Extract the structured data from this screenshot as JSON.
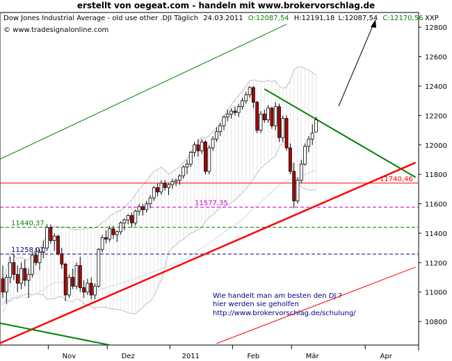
{
  "banner": "erstellt von oegeat.com  -  handeln mit  www.brokervorschlag.de",
  "header": {
    "title": "Dow Jones Industrial Average - old use other .DJI Täglich",
    "date": "24.03.2011",
    "open": "O:12087,54",
    "high": "H:12191,18",
    "low": "L:12087,54",
    "close": "C:12170,56",
    "symbol": "XXP",
    "copyright": "© www.tradesignalonline.com"
  },
  "annotation": {
    "line1": "Wie handelt man am besten  den DJ ?",
    "line2": "hier werden sie geholfen",
    "line3": "http://www.brokervorschlag.de/schulung/"
  },
  "colors": {
    "up_candle": "#ffffff",
    "down_candle": "#b00000",
    "outline": "#000000",
    "resistance": "#008000",
    "support": "#ff0000",
    "level_green": "#008000",
    "level_blue": "#000080",
    "level_magenta": "#cc00cc",
    "level_red": "#ff0000",
    "band": "#c0c0c0"
  },
  "chart_data": {
    "type": "candlestick",
    "title": "Dow Jones Industrial Average - old use other .DJI Täglich",
    "x_labels": [
      "Nov",
      "Dez",
      "2011",
      "Feb",
      "Mär",
      "Apr"
    ],
    "ylim": [
      10640,
      12900
    ],
    "y_ticks": [
      10800,
      11000,
      11200,
      11400,
      11600,
      11800,
      12000,
      12200,
      12400,
      12600,
      12800
    ],
    "grid": false,
    "last_close": 12170.56,
    "levels": [
      {
        "value": 11740.46,
        "label": "11740,46",
        "color": "#ff0000",
        "style": "solid"
      },
      {
        "value": 11577.35,
        "label": "11577,35",
        "color": "#cc00cc",
        "style": "dashed"
      },
      {
        "value": 11440.37,
        "label": "11440,37",
        "color": "#008000",
        "style": "dashed"
      },
      {
        "value": 11258.01,
        "label": "11258,01",
        "color": "#000080",
        "style": "dashed"
      }
    ],
    "ohlc": [
      [
        11090,
        11180,
        10960,
        11000
      ],
      [
        11000,
        11120,
        10920,
        11100
      ],
      [
        11100,
        11240,
        11060,
        11200
      ],
      [
        11200,
        11260,
        11080,
        11120
      ],
      [
        11120,
        11180,
        11000,
        11060
      ],
      [
        11060,
        11200,
        11020,
        11160
      ],
      [
        11160,
        11220,
        11040,
        11080
      ],
      [
        11080,
        11160,
        10960,
        11120
      ],
      [
        11120,
        11270,
        11100,
        11250
      ],
      [
        11250,
        11300,
        11180,
        11200
      ],
      [
        11200,
        11290,
        11150,
        11270
      ],
      [
        11270,
        11350,
        11230,
        11300
      ],
      [
        11300,
        11460,
        11280,
        11440
      ],
      [
        11440,
        11460,
        11330,
        11350
      ],
      [
        11350,
        11400,
        11280,
        11380
      ],
      [
        11380,
        11390,
        11250,
        11260
      ],
      [
        11260,
        11300,
        11160,
        11190
      ],
      [
        11190,
        11200,
        10940,
        10980
      ],
      [
        10980,
        11120,
        10960,
        11100
      ],
      [
        11100,
        11160,
        11020,
        11040
      ],
      [
        11040,
        11200,
        11020,
        11180
      ],
      [
        11180,
        11240,
        11000,
        11030
      ],
      [
        11030,
        11080,
        10960,
        11000
      ],
      [
        11000,
        11090,
        10980,
        11060
      ],
      [
        11060,
        11100,
        10950,
        10980
      ],
      [
        10980,
        11060,
        10950,
        11040
      ],
      [
        11040,
        11300,
        11030,
        11290
      ],
      [
        11290,
        11390,
        11270,
        11370
      ],
      [
        11370,
        11420,
        11330,
        11360
      ],
      [
        11360,
        11450,
        11340,
        11430
      ],
      [
        11430,
        11450,
        11360,
        11390
      ],
      [
        11390,
        11420,
        11340,
        11410
      ],
      [
        11410,
        11480,
        11390,
        11470
      ],
      [
        11470,
        11500,
        11420,
        11490
      ],
      [
        11490,
        11530,
        11460,
        11520
      ],
      [
        11520,
        11540,
        11440,
        11470
      ],
      [
        11470,
        11560,
        11450,
        11550
      ],
      [
        11550,
        11600,
        11520,
        11580
      ],
      [
        11580,
        11600,
        11520,
        11560
      ],
      [
        11560,
        11620,
        11540,
        11600
      ],
      [
        11600,
        11660,
        11570,
        11640
      ],
      [
        11640,
        11720,
        11620,
        11710
      ],
      [
        11710,
        11740,
        11650,
        11680
      ],
      [
        11680,
        11760,
        11660,
        11740
      ],
      [
        11740,
        11760,
        11690,
        11710
      ],
      [
        11710,
        11740,
        11660,
        11730
      ],
      [
        11730,
        11770,
        11700,
        11750
      ],
      [
        11750,
        11770,
        11720,
        11760
      ],
      [
        11760,
        11800,
        11730,
        11790
      ],
      [
        11790,
        11860,
        11770,
        11850
      ],
      [
        11850,
        11900,
        11800,
        11870
      ],
      [
        11870,
        11960,
        11850,
        11950
      ],
      [
        11950,
        12020,
        11920,
        12000
      ],
      [
        12000,
        12040,
        11920,
        11960
      ],
      [
        11960,
        12040,
        11940,
        12020
      ],
      [
        12020,
        12030,
        11800,
        11820
      ],
      [
        11820,
        12000,
        11800,
        11980
      ],
      [
        11980,
        12060,
        11960,
        12040
      ],
      [
        12040,
        12120,
        12020,
        12090
      ],
      [
        12090,
        12150,
        12060,
        12130
      ],
      [
        12130,
        12200,
        12100,
        12190
      ],
      [
        12190,
        12240,
        12160,
        12210
      ],
      [
        12210,
        12250,
        12180,
        12230
      ],
      [
        12230,
        12260,
        12200,
        12220
      ],
      [
        12220,
        12280,
        12190,
        12260
      ],
      [
        12260,
        12320,
        12240,
        12300
      ],
      [
        12300,
        12360,
        12280,
        12340
      ],
      [
        12340,
        12400,
        12320,
        12390
      ],
      [
        12390,
        12400,
        12250,
        12290
      ],
      [
        12290,
        12300,
        12080,
        12100
      ],
      [
        12100,
        12230,
        12080,
        12210
      ],
      [
        12210,
        12240,
        12150,
        12170
      ],
      [
        12170,
        12270,
        12150,
        12250
      ],
      [
        12250,
        12260,
        12110,
        12130
      ],
      [
        12130,
        12290,
        12100,
        12260
      ],
      [
        12260,
        12280,
        12020,
        12050
      ],
      [
        12050,
        12200,
        12020,
        12180
      ],
      [
        12180,
        12200,
        11960,
        11980
      ],
      [
        11980,
        12010,
        11800,
        11820
      ],
      [
        11820,
        11880,
        11570,
        11620
      ],
      [
        11620,
        11780,
        11600,
        11760
      ],
      [
        11760,
        11900,
        11740,
        11870
      ],
      [
        11870,
        12010,
        11860,
        11990
      ],
      [
        11990,
        12060,
        11950,
        12040
      ],
      [
        12040,
        12140,
        12000,
        12080
      ],
      [
        12087.54,
        12191.18,
        12087.54,
        12170.56
      ]
    ]
  }
}
